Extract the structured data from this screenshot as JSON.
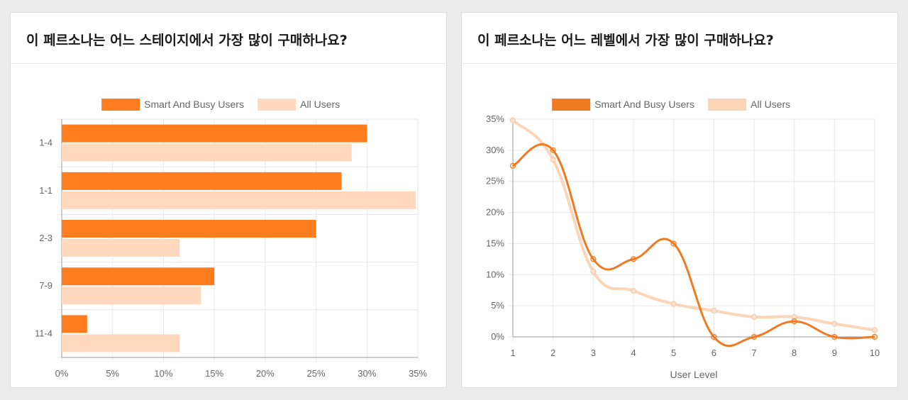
{
  "colors": {
    "series_primary": "#ff7c1f",
    "series_secondary": "#ffd8bd",
    "line_primary": "#f07a22",
    "line_secondary": "#fcd4b6",
    "grid": "#e6e6e6",
    "axis": "#9a9a9a"
  },
  "cards": [
    {
      "title": "이 페르소나는 어느 스테이지에서 가장 많이 구매하나요?"
    },
    {
      "title": "이 페르소나는 어느 레벨에서 가장 많이 구매하나요?"
    }
  ],
  "chart_data": [
    {
      "type": "bar",
      "orientation": "horizontal",
      "title": "이 페르소나는 어느 스테이지에서 가장 많이 구매하나요?",
      "categories": [
        "1-4",
        "1-1",
        "2-3",
        "7-9",
        "11-4"
      ],
      "series": [
        {
          "name": "Smart And Busy Users",
          "values": [
            30,
            27.5,
            25,
            15,
            2.5
          ]
        },
        {
          "name": "All Users",
          "values": [
            28.5,
            34.8,
            11.6,
            13.7,
            11.6
          ]
        }
      ],
      "xlim": [
        0,
        35
      ],
      "xticks": [
        "0%",
        "5%",
        "10%",
        "15%",
        "20%",
        "25%",
        "30%",
        "35%"
      ],
      "xlabel": "",
      "ylabel": "",
      "grid": true,
      "legend": "top-center"
    },
    {
      "type": "line",
      "title": "이 페르소나는 어느 레벨에서 가장 많이 구매하나요?",
      "x": [
        1,
        2,
        3,
        4,
        5,
        6,
        7,
        8,
        9,
        10
      ],
      "series": [
        {
          "name": "Smart And Busy Users",
          "values": [
            27.5,
            30,
            12.5,
            12.5,
            15,
            0,
            0,
            2.5,
            0,
            0
          ]
        },
        {
          "name": "All Users",
          "values": [
            34.8,
            28.5,
            10.5,
            7.4,
            5.3,
            4.2,
            3.2,
            3.2,
            2.1,
            1.1
          ]
        }
      ],
      "ylim": [
        0,
        35
      ],
      "yticks": [
        "0%",
        "5%",
        "10%",
        "15%",
        "20%",
        "25%",
        "30%",
        "35%"
      ],
      "xticks": [
        "1",
        "2",
        "3",
        "4",
        "5",
        "6",
        "7",
        "8",
        "9",
        "10"
      ],
      "xlabel": "User Level",
      "ylabel": "",
      "grid": true,
      "legend": "top-center"
    }
  ]
}
